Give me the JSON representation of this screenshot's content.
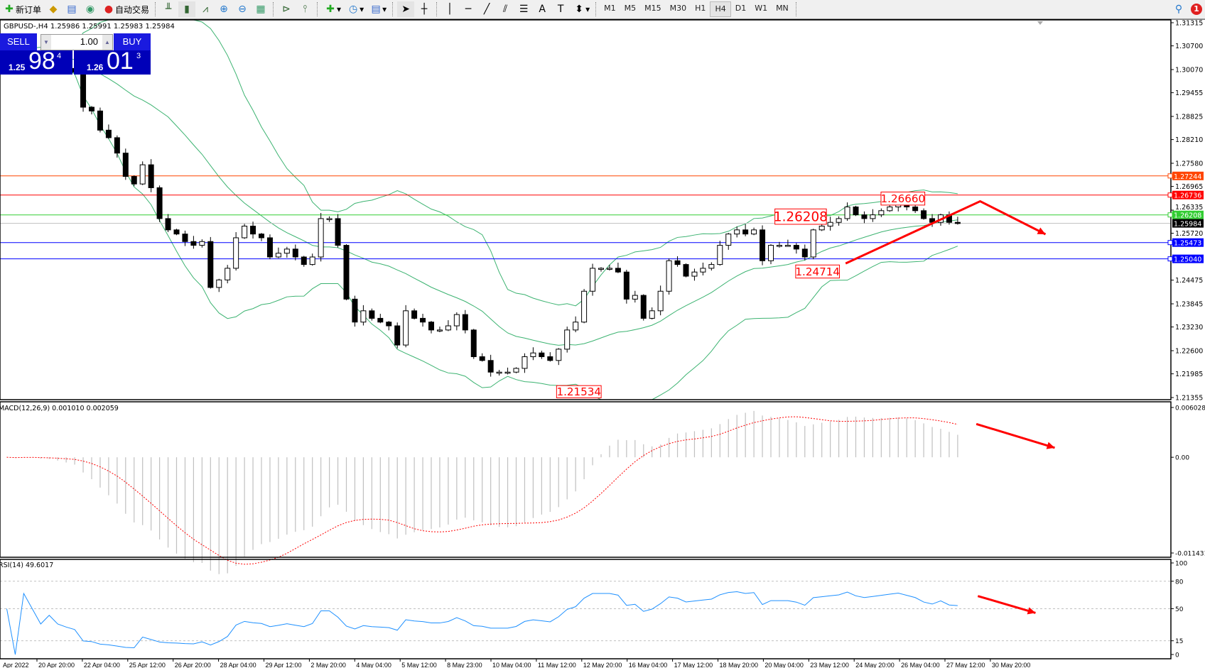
{
  "toolbar": {
    "new_order": "新订单",
    "auto_trading": "自动交易",
    "timeframes": [
      "M1",
      "M5",
      "M15",
      "M30",
      "H1",
      "H4",
      "D1",
      "W1",
      "MN"
    ],
    "active_timeframe": "H4",
    "notification_count": "1",
    "icons": [
      "new-order-icon",
      "gold-icon",
      "market-watch-icon",
      "signal-icon",
      "auto-trading-icon",
      "bar-chart-icon",
      "candlestick-icon",
      "line-chart-icon",
      "zoom-in-icon",
      "zoom-out-icon",
      "tile-windows-icon",
      "auto-scroll-icon",
      "chart-shift-icon",
      "indicators-icon",
      "periods-icon",
      "templates-icon",
      "cursor-icon",
      "crosshair-icon",
      "vertical-line-icon",
      "horizontal-line-icon",
      "trendline-icon",
      "channel-icon",
      "fibonacci-icon",
      "text-icon",
      "label-icon",
      "arrows-icon",
      "search-icon",
      "notification-icon"
    ]
  },
  "chart": {
    "header": "GBPUSD-,H4  1.25986 1.25991 1.25983 1.25984",
    "price_axis_labels": [
      "1.31315",
      "1.30700",
      "1.30070",
      "1.29455",
      "1.28825",
      "1.28210",
      "1.27580",
      "1.26965",
      "1.26335",
      "1.25720",
      "1.24475",
      "1.23845",
      "1.23230",
      "1.22600",
      "1.21985",
      "1.21355"
    ],
    "levels": [
      {
        "price": "1.27244",
        "color": "#ff4500"
      },
      {
        "price": "1.26736",
        "color": "#ff0000"
      },
      {
        "price": "1.26208",
        "color": "#32cd32"
      },
      {
        "price": "1.25984",
        "color": "#000000",
        "line": "#c0c0c0"
      },
      {
        "price": "1.25473",
        "color": "#0000ff"
      },
      {
        "price": "1.25040",
        "color": "#0000ff"
      }
    ],
    "annotations": [
      "1.26208",
      "1.26660",
      "1.24714",
      "1.21534"
    ],
    "band_color": "#3cb371",
    "arrow_color": "#ff0000"
  },
  "trade_panel": {
    "sell": "SELL",
    "buy": "BUY",
    "lot": "1.00",
    "bid_prefix": "1.25",
    "bid_big": "98",
    "bid_pip": "4",
    "ask_prefix": "1.26",
    "ask_big": "01",
    "ask_pip": "3"
  },
  "macd": {
    "label": "MACD(12,26,9) 0.001010 0.002059",
    "axis": [
      "0.006028",
      "0.00",
      "-0.011431"
    ]
  },
  "rsi": {
    "label": "RSI(14) 49.6017",
    "axis": [
      "100",
      "80",
      "50",
      "15",
      "0"
    ]
  },
  "time_axis": [
    "Apr 2022",
    "20 Apr 20:00",
    "22 Apr 04:00",
    "25 Apr 12:00",
    "26 Apr 20:00",
    "28 Apr 04:00",
    "29 Apr 12:00",
    "2 May 20:00",
    "4 May 04:00",
    "5 May 12:00",
    "8 May 23:00",
    "10 May 04:00",
    "11 May 12:00",
    "12 May 20:00",
    "16 May 04:00",
    "17 May 12:00",
    "18 May 20:00",
    "20 May 04:00",
    "23 May 12:00",
    "24 May 20:00",
    "26 May 04:00",
    "27 May 12:00",
    "30 May 20:00"
  ],
  "chart_data": {
    "type": "candlestick",
    "symbol": "GBPUSD-",
    "timeframe": "H4",
    "ylim": [
      1.21355,
      1.31315
    ],
    "closes": [
      1.305,
      1.304,
      1.306,
      1.305,
      1.303,
      1.304,
      1.302,
      1.301,
      1.3,
      1.2907,
      1.2897,
      1.2846,
      1.2826,
      1.2785,
      1.2723,
      1.2703,
      1.2754,
      1.2693,
      1.2611,
      1.2581,
      1.257,
      1.255,
      1.254,
      1.255,
      1.2428,
      1.2448,
      1.2479,
      1.256,
      1.2591,
      1.257,
      1.256,
      1.2509,
      1.2519,
      1.253,
      1.2509,
      1.2489,
      1.2509,
      1.2611,
      1.2611,
      1.254,
      1.2397,
      1.2336,
      1.2366,
      1.2346,
      1.2336,
      1.2326,
      1.2275,
      1.2366,
      1.2346,
      1.2336,
      1.2315,
      1.2315,
      1.2326,
      1.2356,
      1.2315,
      1.2244,
      1.2234,
      1.2203,
      1.2203,
      1.2203,
      1.2213,
      1.2244,
      1.2254,
      1.2244,
      1.2234,
      1.2264,
      1.2315,
      1.2336,
      1.2418,
      1.2479,
      1.2479,
      1.2479,
      1.2469,
      1.2397,
      1.2407,
      1.2346,
      1.2366,
      1.2418,
      1.2499,
      1.2489,
      1.2458,
      1.2469,
      1.2479,
      1.2489,
      1.254,
      1.257,
      1.2581,
      1.257,
      1.2581,
      1.2499,
      1.254,
      1.254,
      1.254,
      1.253,
      1.2509,
      1.2581,
      1.2591,
      1.2601,
      1.2611,
      1.2642,
      1.2621,
      1.2611,
      1.2621,
      1.2632,
      1.2642,
      1.2652,
      1.2642,
      1.2632,
      1.2611,
      1.2601,
      1.2621,
      1.2601,
      1.2598
    ]
  }
}
